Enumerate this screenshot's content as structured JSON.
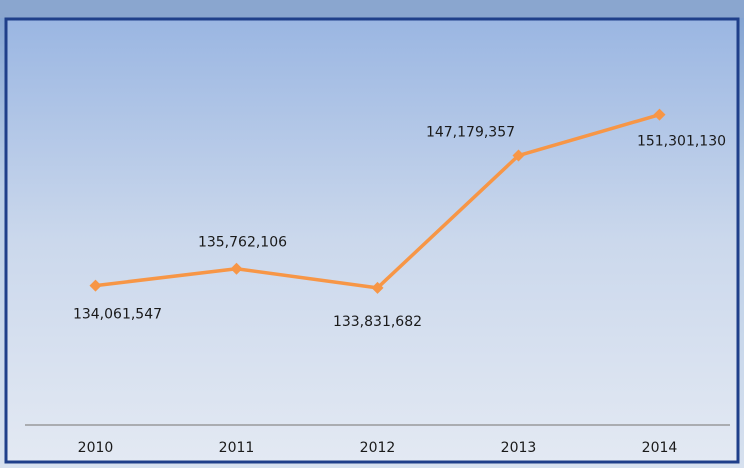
{
  "chart_data": {
    "type": "line",
    "categories": [
      "2010",
      "2011",
      "2012",
      "2013",
      "2014"
    ],
    "series": [
      {
        "name": null,
        "color": "#f79646",
        "values": [
          134061547,
          135762106,
          133831682,
          147179357,
          151301130
        ],
        "value_labels": [
          "134,061,547",
          "135,762,106",
          "133,831,682",
          "147,179,357",
          "151,301,130"
        ]
      }
    ],
    "ylim": [
      120000000,
      155000000
    ]
  }
}
